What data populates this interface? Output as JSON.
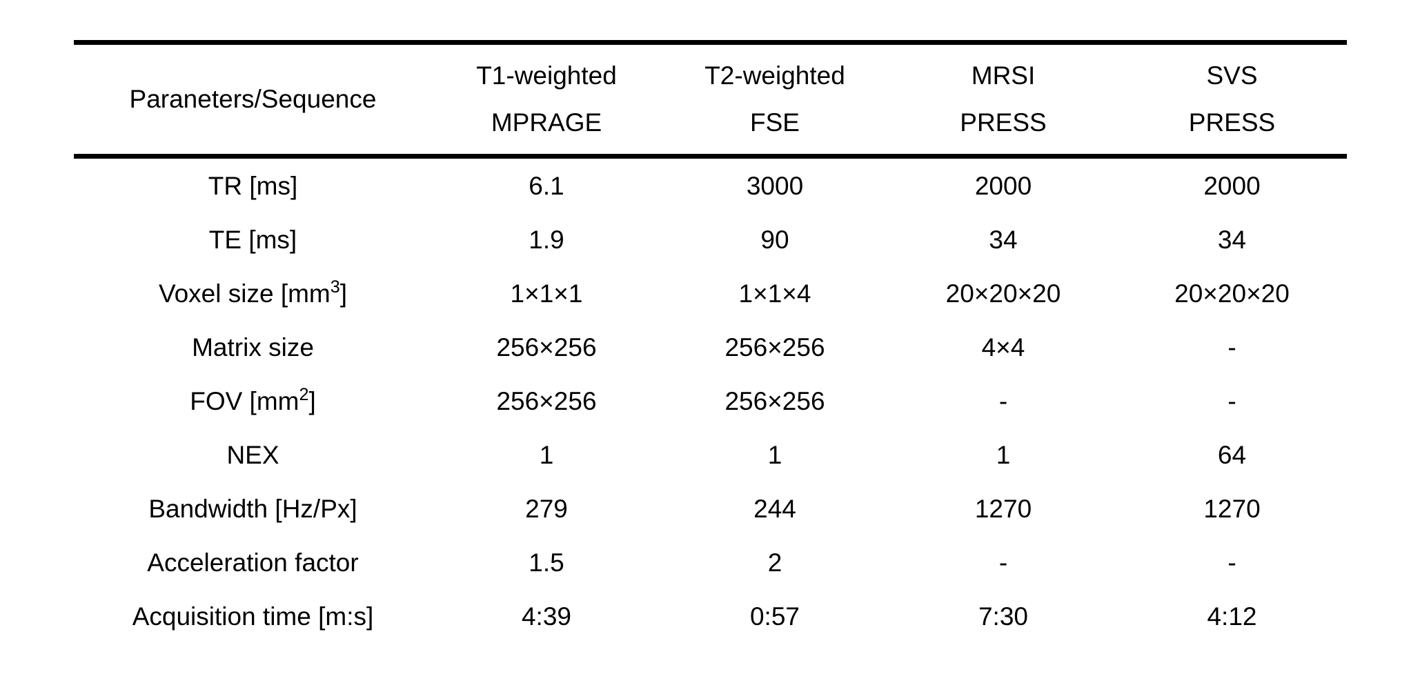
{
  "table": {
    "header": {
      "param_label": "Paraneters/Sequence",
      "columns": [
        {
          "line1": "T1-weighted",
          "line2": "MPRAGE"
        },
        {
          "line1": "T2-weighted",
          "line2": "FSE"
        },
        {
          "line1": "MRSI",
          "line2": "PRESS"
        },
        {
          "line1": "SVS",
          "line2": "PRESS"
        }
      ]
    },
    "rows": [
      {
        "label": {
          "pre": "TR [ms]",
          "sup": "",
          "post": ""
        },
        "values": [
          "6.1",
          "3000",
          "2000",
          "2000"
        ]
      },
      {
        "label": {
          "pre": "TE [ms]",
          "sup": "",
          "post": ""
        },
        "values": [
          "1.9",
          "90",
          "34",
          "34"
        ]
      },
      {
        "label": {
          "pre": "Voxel size [mm",
          "sup": "3",
          "post": "]"
        },
        "values": [
          "1×1×1",
          "1×1×4",
          "20×20×20",
          "20×20×20"
        ]
      },
      {
        "label": {
          "pre": "Matrix size",
          "sup": "",
          "post": ""
        },
        "values": [
          "256×256",
          "256×256",
          "4×4",
          "-"
        ]
      },
      {
        "label": {
          "pre": "FOV [mm",
          "sup": "2",
          "post": "]"
        },
        "values": [
          "256×256",
          "256×256",
          "-",
          "-"
        ]
      },
      {
        "label": {
          "pre": "NEX",
          "sup": "",
          "post": ""
        },
        "values": [
          "1",
          "1",
          "1",
          "64"
        ]
      },
      {
        "label": {
          "pre": "Bandwidth [Hz/Px]",
          "sup": "",
          "post": ""
        },
        "values": [
          "279",
          "244",
          "1270",
          "1270"
        ]
      },
      {
        "label": {
          "pre": "Acceleration factor",
          "sup": "",
          "post": ""
        },
        "values": [
          "1.5",
          "2",
          "-",
          "-"
        ]
      },
      {
        "label": {
          "pre": "Acquisition time [m:s]",
          "sup": "",
          "post": ""
        },
        "values": [
          "4:39",
          "0:57",
          "7:30",
          "4:12"
        ]
      }
    ]
  }
}
